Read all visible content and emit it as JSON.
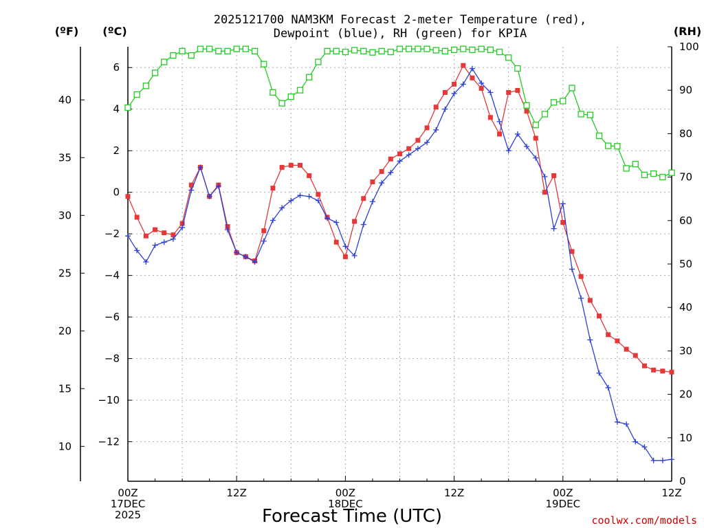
{
  "chart_data": {
    "type": "line",
    "title_line1": "2025121700 NAM3KM Forecast 2-meter Temperature (red),",
    "title_line2": "Dewpoint (blue), RH (green) for KPIA",
    "xlabel": "Forecast Time (UTC)",
    "credit": "coolwx.com/models",
    "unit_f": "(ºF)",
    "unit_c": "(ºC)",
    "unit_rh": "(RH)",
    "xlim": [
      0,
      60
    ],
    "ylim_c": [
      -13.9,
      7.0
    ],
    "ylim_rh": [
      0,
      100
    ],
    "x_ticks": [
      {
        "x": 0,
        "lines": [
          "00Z",
          "17DEC",
          "2025"
        ]
      },
      {
        "x": 12,
        "lines": [
          "12Z"
        ]
      },
      {
        "x": 24,
        "lines": [
          "00Z",
          "18DEC"
        ]
      },
      {
        "x": 36,
        "lines": [
          "12Z"
        ]
      },
      {
        "x": 48,
        "lines": [
          "00Z",
          "19DEC"
        ]
      },
      {
        "x": 60,
        "lines": [
          "12Z"
        ]
      }
    ],
    "c_ticks": [
      6,
      4,
      2,
      0,
      -2,
      -4,
      -6,
      -8,
      -10,
      -12
    ],
    "c_tick_labels": [
      "6",
      "4",
      "2",
      "0",
      "−2",
      "−4",
      "−6",
      "−8",
      "−10",
      "−12"
    ],
    "f_ticks": [
      40,
      35,
      30,
      25,
      20,
      15,
      10
    ],
    "rh_ticks": [
      100,
      90,
      80,
      70,
      60,
      50,
      40,
      30,
      20,
      10,
      0
    ],
    "series": [
      {
        "name": "Temperature",
        "axis": "c",
        "color": "#e53838",
        "marker": "square-filled",
        "x": [
          0,
          1,
          2,
          3,
          4,
          5,
          6,
          7,
          8,
          9,
          10,
          11,
          12,
          13,
          14,
          15,
          16,
          17,
          18,
          19,
          20,
          21,
          22,
          23,
          24,
          25,
          26,
          27,
          28,
          29,
          30,
          31,
          32,
          33,
          34,
          35,
          36,
          37,
          38,
          39,
          40,
          41,
          42,
          43,
          44,
          45,
          46,
          47,
          48,
          49,
          50,
          51,
          52,
          53,
          54,
          55,
          56,
          57,
          58,
          59,
          60
        ],
        "values": [
          -0.2,
          -1.2,
          -2.1,
          -1.8,
          -1.95,
          -2.05,
          -1.5,
          0.35,
          1.2,
          -0.2,
          0.35,
          -1.65,
          -2.9,
          -3.1,
          -3.3,
          -1.85,
          0.2,
          1.2,
          1.3,
          1.3,
          0.8,
          -0.1,
          -1.2,
          -2.4,
          -3.1,
          -1.4,
          -0.3,
          0.5,
          1.0,
          1.6,
          1.85,
          2.1,
          2.5,
          3.1,
          4.1,
          4.8,
          5.2,
          6.1,
          5.5,
          5.0,
          3.6,
          2.8,
          4.8,
          4.9,
          3.9,
          2.6,
          0.0,
          0.8,
          -1.45,
          -2.85,
          -4.05,
          -5.2,
          -5.95,
          -6.85,
          -7.15,
          -7.55,
          -7.85,
          -8.35,
          -8.55,
          -8.6,
          -8.65
        ]
      },
      {
        "name": "Dewpoint",
        "axis": "c",
        "color": "#2a3fd6",
        "marker": "plus",
        "x": [
          0,
          1,
          2,
          3,
          4,
          5,
          6,
          7,
          8,
          9,
          10,
          11,
          12,
          13,
          14,
          15,
          16,
          17,
          18,
          19,
          20,
          21,
          22,
          23,
          24,
          25,
          26,
          27,
          28,
          29,
          30,
          31,
          32,
          33,
          34,
          35,
          36,
          37,
          38,
          39,
          40,
          41,
          42,
          43,
          44,
          45,
          46,
          47,
          48,
          49,
          50,
          51,
          52,
          53,
          54,
          55,
          56,
          57,
          58,
          59,
          60
        ],
        "values": [
          -2.1,
          -2.8,
          -3.35,
          -2.55,
          -2.4,
          -2.25,
          -1.7,
          0.1,
          1.2,
          -0.2,
          0.3,
          -1.8,
          -2.9,
          -3.1,
          -3.35,
          -2.35,
          -1.35,
          -0.75,
          -0.4,
          -0.15,
          -0.2,
          -0.4,
          -1.25,
          -1.45,
          -2.6,
          -3.05,
          -1.55,
          -0.45,
          0.45,
          0.95,
          1.5,
          1.8,
          2.1,
          2.4,
          3.0,
          4.0,
          4.75,
          5.2,
          5.95,
          5.25,
          4.8,
          3.4,
          2.0,
          2.8,
          2.2,
          1.65,
          0.75,
          -1.75,
          -0.55,
          -3.7,
          -5.1,
          -7.1,
          -8.7,
          -9.4,
          -11.05,
          -11.15,
          -12.0,
          -12.25,
          -12.9,
          -12.9,
          -12.85
        ]
      },
      {
        "name": "RH",
        "axis": "rh",
        "color": "#22cc22",
        "marker": "square-open",
        "x": [
          0,
          1,
          2,
          3,
          4,
          5,
          6,
          7,
          8,
          9,
          10,
          11,
          12,
          13,
          14,
          15,
          16,
          17,
          18,
          19,
          20,
          21,
          22,
          23,
          24,
          25,
          26,
          27,
          28,
          29,
          30,
          31,
          32,
          33,
          34,
          35,
          36,
          37,
          38,
          39,
          40,
          41,
          42,
          43,
          44,
          45,
          46,
          47,
          48,
          49,
          50,
          51,
          52,
          53,
          54,
          55,
          56,
          57,
          58,
          59,
          60
        ],
        "values": [
          86,
          89,
          91,
          94,
          96.5,
          98,
          99,
          98,
          99.5,
          99.5,
          99,
          99,
          99.5,
          99.5,
          99,
          96,
          89.5,
          87,
          88.5,
          90,
          93,
          96.5,
          99,
          99,
          98.8,
          99.2,
          99,
          98.7,
          99,
          98.8,
          99.5,
          99.5,
          99.5,
          99.5,
          99.2,
          99,
          99.3,
          99.5,
          99.3,
          99.5,
          99.3,
          98.8,
          97.5,
          95,
          86.5,
          82,
          84.5,
          87.2,
          87.5,
          90.5,
          84.5,
          84.3,
          79.5,
          77.2,
          77.1,
          72,
          73,
          70.5,
          70.8,
          70,
          71
        ]
      }
    ]
  }
}
